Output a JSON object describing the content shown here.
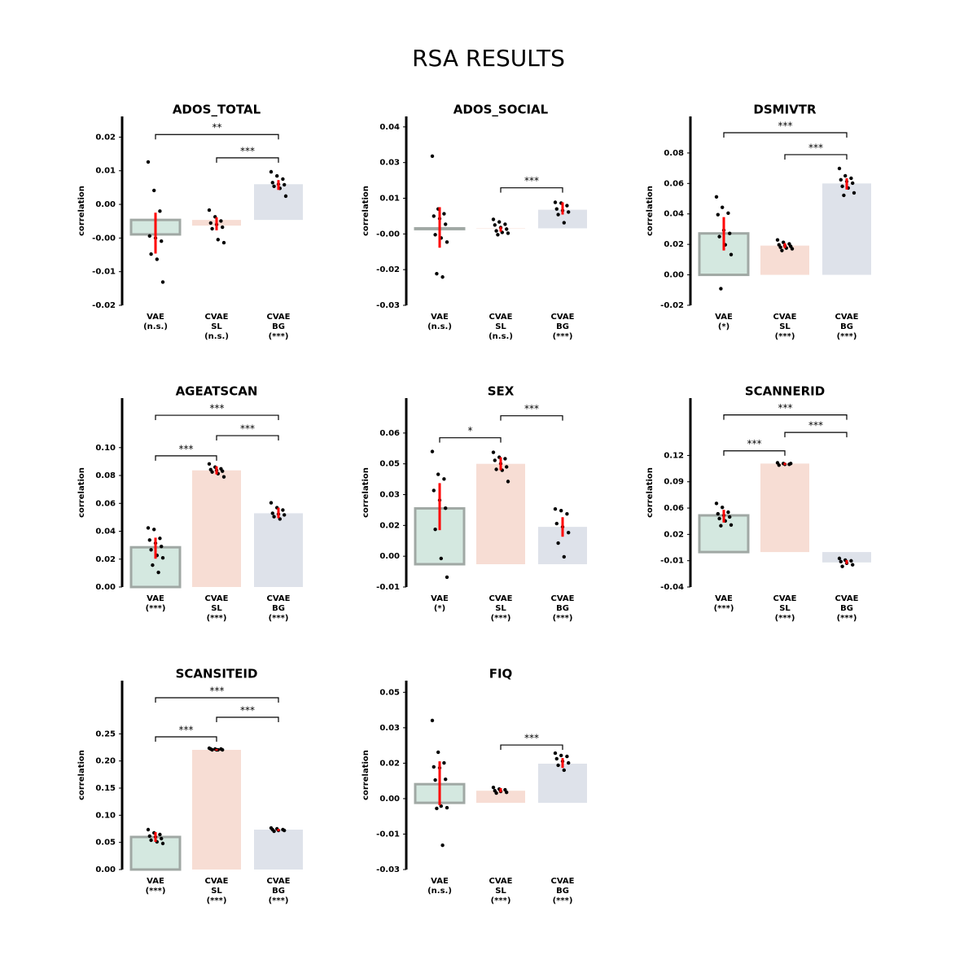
{
  "title": "RSA RESULTS",
  "chart_data": [
    {
      "type": "bar",
      "title": "ADOS_TOTAL",
      "ylabel": "correlation",
      "categories": [
        [
          "VAE",
          "(n.s.)"
        ],
        [
          "CVAE",
          "SL",
          "(n.s.)"
        ],
        [
          "CVAE",
          "BG",
          "(***)"
        ]
      ],
      "colors": [
        "#d4e8e0",
        "#f7ddd4",
        "#dee2ea"
      ],
      "edgecolor": "#a0a8a4",
      "values": [
        -0.0028,
        -0.0011,
        0.0069
      ],
      "ci": [
        [
          0.0014,
          -0.0065
        ],
        [
          0.0005,
          -0.002
        ],
        [
          0.0077,
          0.0058
        ]
      ],
      "points": [
        [
          0.0112,
          0.0057,
          0.0017,
          -0.0031,
          -0.0035,
          -0.0041,
          -0.0066,
          -0.0076,
          -0.012
        ],
        [
          0.0019,
          0.0006,
          -0.0002,
          -0.0006,
          -0.0009,
          -0.0014,
          -0.0017,
          -0.0038,
          -0.0044
        ],
        [
          0.0093,
          0.0085,
          0.0079,
          0.0072,
          0.0069,
          0.0068,
          0.0065,
          0.0061,
          0.0046
        ]
      ],
      "brackets": [
        {
          "between": [
            0,
            2
          ],
          "y": 0.0165,
          "label": "**"
        },
        {
          "between": [
            1,
            2
          ],
          "y": 0.012,
          "label": "***"
        }
      ],
      "ylim": [
        -0.0165,
        0.02
      ],
      "yticks": [
        {
          "value": -0.0165,
          "label": "-0.02"
        },
        {
          "value": -0.01,
          "label": "-0.01"
        },
        {
          "value": -0.0035,
          "label": "-0.00"
        },
        {
          "value": 0.003,
          "label": "0.00"
        },
        {
          "value": 0.0095,
          "label": "0.01"
        },
        {
          "value": 0.016,
          "label": "0.02"
        }
      ]
    },
    {
      "type": "bar",
      "title": "ADOS_SOCIAL",
      "ylabel": "correlation",
      "categories": [
        [
          "VAE",
          "(n.s.)"
        ],
        [
          "CVAE",
          "SL",
          "(n.s.)"
        ],
        [
          "CVAE",
          "BG",
          "(***)"
        ]
      ],
      "colors": [
        "#d4e8e0",
        "#f7ddd4",
        "#dee2ea"
      ],
      "edgecolor": "#a0a8a4",
      "values": [
        -0.0003,
        0,
        0.0073
      ],
      "ci": [
        [
          0.0083,
          -0.0076
        ],
        [
          0.0006,
          -0.0013
        ],
        [
          0.0102,
          0.0054
        ]
      ],
      "points": [
        [
          0.0283,
          0.0076,
          0.0057,
          0.0048,
          0.0038,
          0.0016,
          -0.0025,
          -0.0038,
          -0.0054,
          -0.0178,
          -0.0191
        ],
        [
          0.0035,
          0.0025,
          0.0016,
          0.0013,
          0.0003,
          -0.0003,
          -0.001,
          -0.0016,
          -0.0019,
          -0.0025
        ],
        [
          0.0102,
          0.0099,
          0.0089,
          0.0076,
          0.007,
          0.0064,
          0.0054,
          0.0022
        ]
      ],
      "brackets": [
        {
          "between": [
            1,
            2
          ],
          "y": 0.0159,
          "label": "***"
        }
      ],
      "ylim": [
        -0.0302,
        0.0439
      ],
      "yticks": [
        {
          "value": -0.0302,
          "label": "-0.03"
        },
        {
          "value": -0.0162,
          "label": "-0.02"
        },
        {
          "value": -0.0022,
          "label": "-0.00"
        },
        {
          "value": 0.0118,
          "label": "0.01"
        },
        {
          "value": 0.0258,
          "label": "0.03"
        },
        {
          "value": 0.0398,
          "label": "0.04"
        }
      ]
    },
    {
      "type": "bar",
      "title": "DSMIVTR",
      "ylabel": "correlation",
      "categories": [
        [
          "VAE",
          "(*)"
        ],
        [
          "CVAE",
          "SL",
          "(***)"
        ],
        [
          "CVAE",
          "BG",
          "(***)"
        ]
      ],
      "colors": [
        "#d4e8e0",
        "#f7ddd4",
        "#dee2ea"
      ],
      "edgecolor": "#a0a8a4",
      "values": [
        0.0272,
        0.0192,
        0.06
      ],
      "ci": [
        [
          0.0379,
          0.016
        ],
        [
          0.0208,
          0.0176
        ],
        [
          0.0634,
          0.056
        ]
      ],
      "points": [
        [
          0.0512,
          0.0443,
          0.0405,
          0.0395,
          0.0293,
          0.0272,
          0.0251,
          0.0197,
          0.0133,
          -0.0091
        ],
        [
          0.0229,
          0.0213,
          0.0203,
          0.0197,
          0.0192,
          0.0187,
          0.0181,
          0.0176,
          0.0171,
          0.016
        ],
        [
          0.0698,
          0.065,
          0.0634,
          0.0624,
          0.0613,
          0.0602,
          0.0581,
          0.057,
          0.0538,
          0.0522
        ]
      ],
      "brackets": [
        {
          "between": [
            0,
            2
          ],
          "y": 0.0933,
          "label": "***"
        },
        {
          "between": [
            1,
            2
          ],
          "y": 0.0789,
          "label": "***"
        }
      ],
      "ylim": [
        -0.02,
        0.104
      ],
      "yticks": [
        {
          "value": -0.02,
          "label": "-0.02"
        },
        {
          "value": 0,
          "label": "0.00"
        },
        {
          "value": 0.02,
          "label": "0.02"
        },
        {
          "value": 0.04,
          "label": "0.04"
        },
        {
          "value": 0.06,
          "label": "0.06"
        },
        {
          "value": 0.08,
          "label": "0.08"
        }
      ]
    },
    {
      "type": "bar",
      "title": "AGEATSCAN",
      "ylabel": "correlation",
      "categories": [
        [
          "VAE",
          "(***)"
        ],
        [
          "CVAE",
          "SL",
          "(***)"
        ],
        [
          "CVAE",
          "BG",
          "(***)"
        ]
      ],
      "colors": [
        "#d4e8e0",
        "#f7ddd4",
        "#dee2ea"
      ],
      "edgecolor": "#a0a8a4",
      "values": [
        0.0285,
        0.0837,
        0.0529
      ],
      "ci": [
        [
          0.0354,
          0.0203
        ],
        [
          0.0866,
          0.0808
        ],
        [
          0.0569,
          0.0494
        ]
      ],
      "points": [
        [
          0.0424,
          0.0413,
          0.0349,
          0.0337,
          0.0314,
          0.0291,
          0.0267,
          0.0227,
          0.0209,
          0.0157,
          0.0105
        ],
        [
          0.0883,
          0.086,
          0.0848,
          0.0842,
          0.0837,
          0.0831,
          0.0825,
          0.0813,
          0.079
        ],
        [
          0.0604,
          0.0569,
          0.0552,
          0.0529,
          0.0523,
          0.0517,
          0.0505,
          0.0488
        ]
      ],
      "brackets": [
        {
          "between": [
            0,
            2
          ],
          "y": 0.1232,
          "label": "***"
        },
        {
          "between": [
            1,
            2
          ],
          "y": 0.1086,
          "label": "***"
        },
        {
          "between": [
            0,
            1
          ],
          "y": 0.0941,
          "label": "***"
        }
      ],
      "ylim": [
        0,
        0.1355
      ],
      "yticks": [
        {
          "value": 0,
          "label": "0.00"
        },
        {
          "value": 0.02,
          "label": "0.02"
        },
        {
          "value": 0.04,
          "label": "0.04"
        },
        {
          "value": 0.06,
          "label": "0.06"
        },
        {
          "value": 0.08,
          "label": "0.08"
        },
        {
          "value": 0.1,
          "label": "0.10"
        }
      ]
    },
    {
      "type": "bar",
      "title": "SEX",
      "ylabel": "correlation",
      "categories": [
        [
          "VAE",
          "(*)"
        ],
        [
          "CVAE",
          "SL",
          "(***)"
        ],
        [
          "CVAE",
          "BG",
          "(***)"
        ]
      ],
      "colors": [
        "#d4e8e0",
        "#f7ddd4",
        "#dee2ea"
      ],
      "edgecolor": "#a0a8a4",
      "values": [
        0.0272,
        0.0489,
        0.0182
      ],
      "ci": [
        [
          0.0395,
          0.0166
        ],
        [
          0.0521,
          0.0458
        ],
        [
          0.0229,
          0.0134
        ]
      ],
      "points": [
        [
          0.0549,
          0.0438,
          0.0415,
          0.0359,
          0.0312,
          0.0273,
          0.017,
          0.0028,
          -0.0063
        ],
        [
          0.0545,
          0.0521,
          0.0514,
          0.0506,
          0.049,
          0.0474,
          0.0462,
          0.0458,
          0.0403
        ],
        [
          0.0269,
          0.0261,
          0.0245,
          0.0198,
          0.0182,
          0.0154,
          0.0103,
          0.0036
        ]
      ],
      "brackets": [
        {
          "between": [
            1,
            2
          ],
          "y": 0.0723,
          "label": "***"
        },
        {
          "between": [
            0,
            1
          ],
          "y": 0.0616,
          "label": "*"
        }
      ],
      "ylim": [
        -0.0111,
        0.0809
      ],
      "yticks": [
        {
          "value": -0.0111,
          "label": "-0.01"
        },
        {
          "value": 0.0039,
          "label": "0.00"
        },
        {
          "value": 0.0189,
          "label": "0.02"
        },
        {
          "value": 0.0339,
          "label": "0.03"
        },
        {
          "value": 0.0489,
          "label": "0.05"
        },
        {
          "value": 0.0639,
          "label": "0.06"
        }
      ]
    },
    {
      "type": "bar",
      "title": "SCANNERID",
      "ylabel": "correlation",
      "categories": [
        [
          "VAE",
          "(***)"
        ],
        [
          "CVAE",
          "SL",
          "(***)"
        ],
        [
          "CVAE",
          "BG",
          "(***)"
        ]
      ],
      "colors": [
        "#d4e8e0",
        "#f7ddd4",
        "#dee2ea"
      ],
      "edgecolor": "#a0a8a4",
      "values": [
        0.0467,
        0.1127,
        -0.0132
      ],
      "ci": [
        [
          0.0538,
          0.0376
        ],
        [
          0.1137,
          0.1107
        ],
        [
          -0.0102,
          -0.0152
        ]
      ],
      "points": [
        [
          0.0619,
          0.0569,
          0.0508,
          0.0487,
          0.0467,
          0.0447,
          0.0426,
          0.0396,
          0.0345,
          0.0335
        ],
        [
          0.1137,
          0.1127,
          0.1117,
          0.1107,
          0.1117,
          0.1127
        ],
        [
          -0.0081,
          -0.0102,
          -0.0112,
          -0.0122,
          -0.0142,
          -0.0162,
          -0.0183
        ]
      ],
      "brackets": [
        {
          "between": [
            0,
            2
          ],
          "y": 0.1746,
          "label": "***"
        },
        {
          "between": [
            1,
            2
          ],
          "y": 0.1523,
          "label": "***"
        },
        {
          "between": [
            0,
            1
          ],
          "y": 0.1289,
          "label": "***"
        }
      ],
      "ylim": [
        -0.0445,
        0.196
      ],
      "yticks": [
        {
          "value": -0.0445,
          "label": "-0.04"
        },
        {
          "value": -0.011,
          "label": "-0.01"
        },
        {
          "value": 0.0225,
          "label": "0.02"
        },
        {
          "value": 0.056,
          "label": "0.06"
        },
        {
          "value": 0.0895,
          "label": "0.09"
        },
        {
          "value": 0.123,
          "label": "0.12"
        }
      ]
    },
    {
      "type": "bar",
      "title": "SCANSITEID",
      "ylabel": "correlation",
      "categories": [
        [
          "VAE",
          "(***)"
        ],
        [
          "CVAE",
          "SL",
          "(***)"
        ],
        [
          "CVAE",
          "BG",
          "(***)"
        ]
      ],
      "colors": [
        "#d4e8e0",
        "#f7ddd4",
        "#dee2ea"
      ],
      "edgecolor": "#a0a8a4",
      "values": [
        0.06,
        0.2205,
        0.0735
      ],
      "ci": [
        [
          0.069,
          0.051
        ],
        [
          0.222,
          0.219
        ],
        [
          0.075,
          0.0705
        ]
      ],
      "points": [
        [
          0.0735,
          0.0675,
          0.0645,
          0.0615,
          0.06,
          0.057,
          0.054,
          0.051,
          0.048
        ],
        [
          0.2235,
          0.222,
          0.222,
          0.222,
          0.2205,
          0.2205,
          0.2205,
          0.2205
        ],
        [
          0.0765,
          0.075,
          0.0735,
          0.0735,
          0.072,
          0.072,
          0.0705
        ]
      ],
      "brackets": [
        {
          "between": [
            0,
            2
          ],
          "y": 0.3165,
          "label": "***"
        },
        {
          "between": [
            1,
            2
          ],
          "y": 0.2805,
          "label": "***"
        },
        {
          "between": [
            0,
            1
          ],
          "y": 0.2445,
          "label": "***"
        }
      ],
      "ylim": [
        0,
        0.348
      ],
      "yticks": [
        {
          "value": 0,
          "label": "0.00"
        },
        0.05,
        {
          "value": 0.1,
          "label": "0.10"
        },
        0.15,
        {
          "value": 0.2,
          "label": "0.20"
        },
        0.25
      ]
    },
    {
      "type": "bar",
      "title": "FIQ",
      "ylabel": "correlation",
      "categories": [
        [
          "VAE",
          "(n.s.)"
        ],
        [
          "CVAE",
          "SL",
          "(***)"
        ],
        [
          "CVAE",
          "BG",
          "(***)"
        ]
      ],
      "colors": [
        "#d4e8e0",
        "#f7ddd4",
        "#dee2ea"
      ],
      "edgecolor": "#a0a8a4",
      "values": [
        0.008,
        0.0052,
        0.0168
      ],
      "ci": [
        [
          0.0178,
          -0.001
        ],
        [
          0.0063,
          0.0045
        ],
        [
          0.0192,
          0.015
        ]
      ],
      "points": [
        [
          0.0353,
          0.0217,
          0.0171,
          0.0154,
          0.015,
          0.0101,
          0.0098,
          -0.0014,
          -0.0021,
          -0.0024,
          -0.0182
        ],
        [
          0.0066,
          0.0059,
          0.0056,
          0.0052,
          0.0049,
          0.0045,
          0.0042
        ],
        [
          0.0213,
          0.0203,
          0.0199,
          0.0189,
          0.0178,
          0.0171,
          0.0161,
          0.014
        ]
      ],
      "brackets": [
        {
          "between": [
            1,
            2
          ],
          "y": 0.0248,
          "label": "***"
        }
      ],
      "ylim": [
        -0.0286,
        0.0524
      ],
      "yticks": [
        {
          "value": -0.0286,
          "label": "-0.03"
        },
        {
          "value": -0.0134,
          "label": "-0.01"
        },
        {
          "value": 0.0018,
          "label": "0.00"
        },
        {
          "value": 0.017,
          "label": "0.02"
        },
        {
          "value": 0.0322,
          "label": "0.03"
        },
        {
          "value": 0.0474,
          "label": "0.05"
        }
      ]
    }
  ]
}
